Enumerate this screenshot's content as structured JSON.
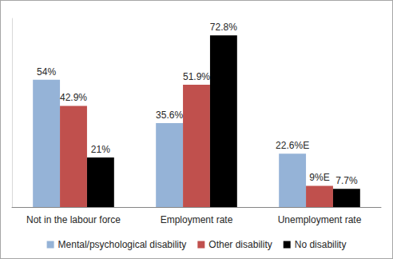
{
  "chart_data": {
    "type": "bar",
    "categories": [
      "Not in the labour force",
      "Employment rate",
      "Unemployment rate"
    ],
    "series": [
      {
        "name": "Mental/psychological disability",
        "color": "#95b3d7",
        "values": [
          54,
          35.6,
          22.6
        ],
        "value_labels": [
          "54%",
          "35.6%",
          "22.6%E"
        ]
      },
      {
        "name": "Other disability",
        "color": "#c0504d",
        "values": [
          42.9,
          51.9,
          9
        ],
        "value_labels": [
          "42.9%",
          "51.9%",
          "9%E"
        ]
      },
      {
        "name": "No disability",
        "color": "#000000",
        "values": [
          21,
          72.8,
          7.7
        ],
        "value_labels": [
          "21%",
          "72.8%",
          "7.7%"
        ]
      }
    ],
    "ylim": [
      0,
      80
    ],
    "grid": false,
    "legend": "bottom",
    "data_labels": true,
    "tick_labels": "x"
  }
}
